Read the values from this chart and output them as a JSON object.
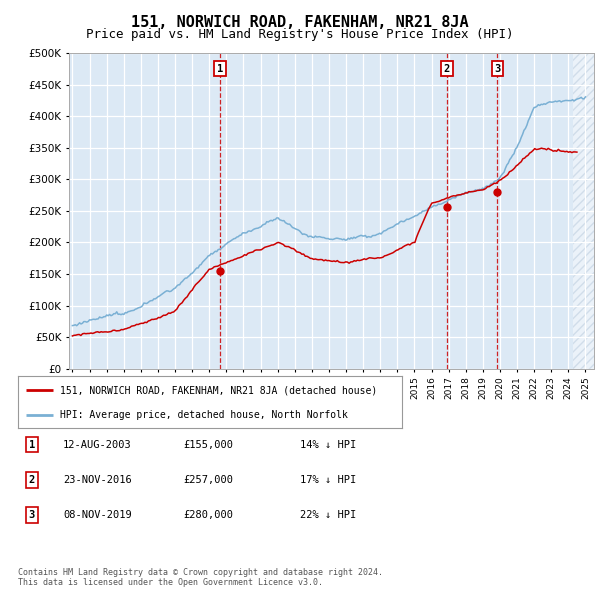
{
  "title": "151, NORWICH ROAD, FAKENHAM, NR21 8JA",
  "subtitle": "Price paid vs. HM Land Registry's House Price Index (HPI)",
  "ylabel_ticks": [
    "£0",
    "£50K",
    "£100K",
    "£150K",
    "£200K",
    "£250K",
    "£300K",
    "£350K",
    "£400K",
    "£450K",
    "£500K"
  ],
  "ytick_values": [
    0,
    50000,
    100000,
    150000,
    200000,
    250000,
    300000,
    350000,
    400000,
    450000,
    500000
  ],
  "xlim_start": 1994.8,
  "xlim_end": 2025.5,
  "ylim_min": 0,
  "ylim_max": 500000,
  "background_color": "#dce9f5",
  "legend_label_red": "151, NORWICH ROAD, FAKENHAM, NR21 8JA (detached house)",
  "legend_label_blue": "HPI: Average price, detached house, North Norfolk",
  "sale_dates": [
    2003.617,
    2016.897,
    2019.854
  ],
  "sale_prices": [
    155000,
    257000,
    280000
  ],
  "sale_labels": [
    "1",
    "2",
    "3"
  ],
  "table_rows": [
    [
      "1",
      "12-AUG-2003",
      "£155,000",
      "14% ↓ HPI"
    ],
    [
      "2",
      "23-NOV-2016",
      "£257,000",
      "17% ↓ HPI"
    ],
    [
      "3",
      "08-NOV-2019",
      "£280,000",
      "22% ↓ HPI"
    ]
  ],
  "footer_text": "Contains HM Land Registry data © Crown copyright and database right 2024.\nThis data is licensed under the Open Government Licence v3.0.",
  "red_color": "#cc0000",
  "blue_color": "#7ab0d4",
  "vline_color": "#cc0000",
  "title_fontsize": 11,
  "subtitle_fontsize": 9,
  "hatch_start": 2024.25
}
